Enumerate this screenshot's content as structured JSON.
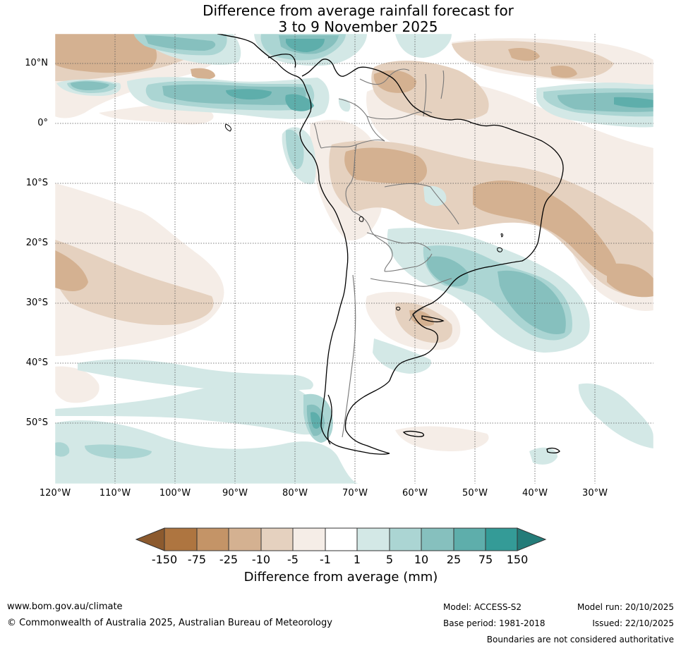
{
  "title": {
    "line1": "Difference from average rainfall forecast for",
    "line2": "3 to 9 November 2025"
  },
  "map": {
    "lat_labels": [
      "10°N",
      "0°",
      "10°S",
      "20°S",
      "30°S",
      "40°S",
      "50°S"
    ],
    "lon_labels": [
      "120°W",
      "110°W",
      "100°W",
      "90°W",
      "80°W",
      "70°W",
      "60°W",
      "50°W",
      "40°W",
      "30°W"
    ]
  },
  "legend": {
    "title": "Difference from average (mm)",
    "tick_labels": [
      "-150",
      "-75",
      "-25",
      "-10",
      "-5",
      "-1",
      "1",
      "5",
      "10",
      "25",
      "75",
      "150"
    ],
    "bins": [
      {
        "range": "< -150",
        "color": "#8c5a2e"
      },
      {
        "range": "-150 to -75",
        "color": "#ae7540"
      },
      {
        "range": "-75 to -25",
        "color": "#c49467"
      },
      {
        "range": "-25 to -10",
        "color": "#d4b191"
      },
      {
        "range": "-10 to -5",
        "color": "#e5d1bf"
      },
      {
        "range": "-5 to -1",
        "color": "#f5ede7"
      },
      {
        "range": "-1 to 1",
        "color": "#ffffff"
      },
      {
        "range": "1 to 5",
        "color": "#d3e8e6"
      },
      {
        "range": "5 to 10",
        "color": "#abd5d3"
      },
      {
        "range": "10 to 25",
        "color": "#86c0be"
      },
      {
        "range": "25 to 75",
        "color": "#5eaeab"
      },
      {
        "range": "75 to 150",
        "color": "#349b97"
      },
      {
        "range": "> 150",
        "color": "#247c79"
      }
    ]
  },
  "footer": {
    "website": "www.bom.gov.au/climate",
    "copyright": "© Commonwealth of Australia 2025, Australian Bureau of Meteorology",
    "model": "Model: ACCESS-S2",
    "base_period": "Base period: 1981-2018",
    "model_run": "Model run: 20/10/2025",
    "issued": "Issued: 22/10/2025",
    "disclaimer": "Boundaries are not considered authoritative"
  }
}
